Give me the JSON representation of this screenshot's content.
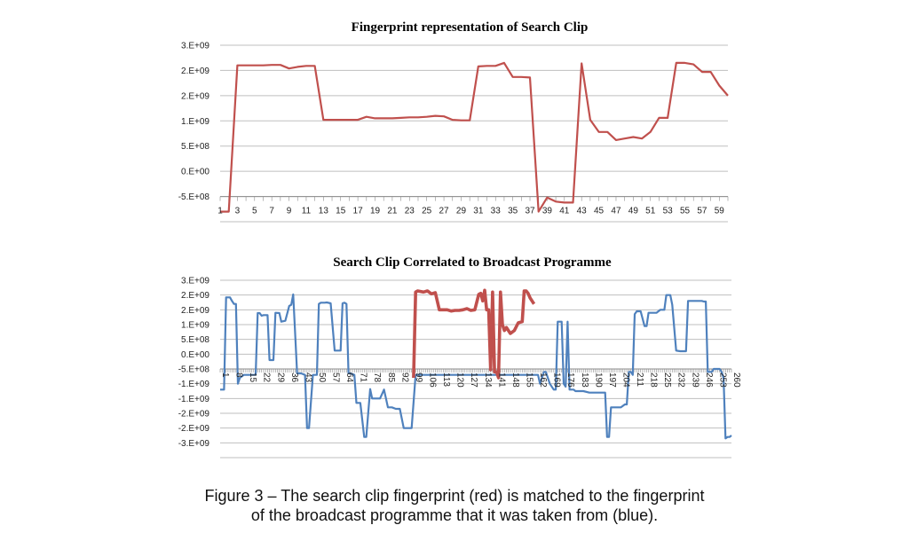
{
  "chart_data": [
    {
      "type": "line",
      "title": "Fingerprint representation of Search Clip",
      "xlabel": "",
      "ylabel": "",
      "ylim": [
        -500000000,
        3000000000
      ],
      "y_ticks": [
        "3.E+09",
        "2.E+09",
        "2.E+09",
        "1.E+09",
        "5.E+08",
        "0.E+00",
        "-5.E+08"
      ],
      "y_tick_values": [
        3000000000,
        2500000000,
        2000000000,
        1500000000,
        1000000000,
        500000000,
        0,
        -500000000
      ],
      "x_ticks": [
        "1",
        "3",
        "5",
        "7",
        "9",
        "11",
        "13",
        "15",
        "17",
        "19",
        "21",
        "23",
        "25",
        "27",
        "29",
        "31",
        "33",
        "35",
        "37",
        "39",
        "41",
        "43",
        "45",
        "47",
        "49",
        "51",
        "53",
        "55",
        "57",
        "59"
      ],
      "grid": true,
      "series": [
        {
          "color": "#c0504d",
          "x": [
            1,
            2,
            3,
            4,
            5,
            6,
            7,
            8,
            9,
            10,
            11,
            12,
            13,
            14,
            15,
            16,
            17,
            18,
            19,
            20,
            21,
            22,
            23,
            24,
            25,
            26,
            27,
            28,
            29,
            30,
            31,
            32,
            33,
            34,
            35,
            36,
            37,
            38,
            39,
            40,
            41,
            42,
            43,
            44,
            45,
            46,
            47,
            48,
            49,
            50,
            51,
            52,
            53,
            54,
            55,
            56,
            57,
            58,
            59,
            60
          ],
          "values": [
            -300000000,
            -300000000,
            2600000000,
            2600000000,
            2600000000,
            2600000000,
            2610000000,
            2610000000,
            2540000000,
            2570000000,
            2590000000,
            2590000000,
            1520000000,
            1520000000,
            1520000000,
            1520000000,
            1520000000,
            1580000000,
            1550000000,
            1550000000,
            1550000000,
            1560000000,
            1570000000,
            1570000000,
            1580000000,
            1600000000,
            1590000000,
            1520000000,
            1510000000,
            1510000000,
            2580000000,
            2590000000,
            2590000000,
            2650000000,
            2370000000,
            2370000000,
            2360000000,
            -300000000,
            -20000000,
            -100000000,
            -120000000,
            -120000000,
            2640000000,
            1520000000,
            1280000000,
            1280000000,
            1120000000,
            1150000000,
            1180000000,
            1150000000,
            1280000000,
            1560000000,
            1560000000,
            2650000000,
            2650000000,
            2620000000,
            2470000000,
            2470000000,
            2200000000,
            2000000000
          ]
        }
      ]
    },
    {
      "type": "line",
      "title": "Search Clip Correlated to Broadcast Programme",
      "xlabel": "",
      "ylabel": "",
      "ylim": [
        -3000000000,
        3000000000
      ],
      "y_ticks": [
        "3.E+09",
        "2.E+09",
        "2.E+09",
        "1.E+09",
        "5.E+08",
        "0.E+00",
        "-5.E+08",
        "-1.E+09",
        "-1.E+09",
        "-2.E+09",
        "-2.E+09",
        "-3.E+09"
      ],
      "y_tick_values": [
        3000000000,
        2500000000,
        2000000000,
        1500000000,
        1000000000,
        500000000,
        0,
        -500000000,
        -1000000000,
        -1500000000,
        -2000000000,
        -2500000000,
        -3000000000
      ],
      "x_ticks": [
        "1",
        "8",
        "15",
        "22",
        "29",
        "36",
        "43",
        "50",
        "57",
        "64",
        "71",
        "78",
        "85",
        "92",
        "99",
        "106",
        "113",
        "120",
        "127",
        "134",
        "141",
        "148",
        "155",
        "162",
        "169",
        "176",
        "183",
        "190",
        "197",
        "204",
        "211",
        "218",
        "225",
        "232",
        "239",
        "246",
        "253",
        "260"
      ],
      "grid": true,
      "series": [
        {
          "color": "#4f81bd",
          "x": [
            1,
            3,
            4,
            6,
            7,
            8,
            9,
            10,
            11,
            13,
            15,
            17,
            19,
            20,
            21,
            22,
            23,
            25,
            26,
            28,
            29,
            31,
            32,
            34,
            36,
            37,
            38,
            40,
            42,
            44,
            45,
            46,
            48,
            50,
            51,
            52,
            54,
            55,
            57,
            59,
            60,
            62,
            63,
            64,
            65,
            66,
            67,
            69,
            70,
            72,
            74,
            75,
            77,
            78,
            80,
            82,
            84,
            86,
            87,
            88,
            90,
            92,
            94,
            96,
            98,
            100,
            102,
            162,
            163,
            165,
            166,
            168,
            170,
            171,
            172,
            174,
            175,
            176,
            177,
            178,
            179,
            180,
            181,
            183,
            185,
            188,
            190,
            192,
            194,
            196,
            197,
            198,
            199,
            201,
            203,
            204,
            206,
            207,
            208,
            209,
            210,
            211,
            212,
            214,
            216,
            217,
            218,
            220,
            222,
            224,
            225,
            226,
            227,
            228,
            229,
            230,
            232,
            234,
            236,
            237,
            238,
            240,
            242,
            244,
            245,
            246,
            247,
            248,
            249,
            250,
            251,
            252,
            253,
            254,
            255,
            256,
            257,
            258,
            259,
            260
          ],
          "values": [
            -700000000,
            -700000000,
            2420000000,
            2420000000,
            2300000000,
            2200000000,
            2200000000,
            -500000000,
            -300000000,
            -200000000,
            -200000000,
            -200000000,
            -200000000,
            1890000000,
            1890000000,
            1800000000,
            1820000000,
            1820000000,
            300000000,
            300000000,
            1900000000,
            1890000000,
            1600000000,
            1630000000,
            2130000000,
            2170000000,
            2520000000,
            -150000000,
            -150000000,
            -200000000,
            -2000000000,
            -2000000000,
            -200000000,
            -200000000,
            2200000000,
            2240000000,
            2240000000,
            2250000000,
            2220000000,
            620000000,
            620000000,
            620000000,
            2220000000,
            2240000000,
            2200000000,
            -150000000,
            -150000000,
            -200000000,
            -1150000000,
            -1150000000,
            -2300000000,
            -2300000000,
            -680000000,
            -1000000000,
            -1000000000,
            -1000000000,
            -700000000,
            -1300000000,
            -1300000000,
            -1300000000,
            -1350000000,
            -1350000000,
            -2000000000,
            -2000000000,
            -2000000000,
            -200000000,
            -200000000,
            -200000000,
            -500000000,
            -100000000,
            -100000000,
            -500000000,
            -700000000,
            -700000000,
            1600000000,
            1600000000,
            -500000000,
            -600000000,
            1600000000,
            -700000000,
            -700000000,
            -700000000,
            -750000000,
            -750000000,
            -750000000,
            -800000000,
            -800000000,
            -800000000,
            -800000000,
            -800000000,
            -2300000000,
            -2300000000,
            -1300000000,
            -1300000000,
            -1300000000,
            -1300000000,
            -1200000000,
            -1200000000,
            -100000000,
            -100000000,
            -200000000,
            1850000000,
            1950000000,
            1950000000,
            1450000000,
            1450000000,
            1900000000,
            1900000000,
            1900000000,
            2000000000,
            2000000000,
            2000000000,
            2500000000,
            2500000000,
            2500000000,
            2170000000,
            620000000,
            600000000,
            600000000,
            600000000,
            2300000000,
            2300000000,
            2300000000,
            2300000000,
            2300000000,
            2280000000,
            2280000000,
            -100000000,
            -100000000,
            -100000000,
            0,
            0,
            0,
            0,
            -100000000,
            -300000000,
            -2350000000,
            -2300000000,
            -2300000000,
            -2250000000
          ]
        },
        {
          "color": "#c0504d",
          "x": [
            99,
            100,
            101,
            104,
            106,
            108,
            110,
            112,
            114,
            116,
            118,
            120,
            122,
            124,
            126,
            128,
            130,
            132,
            133,
            134,
            135,
            136,
            137,
            138,
            139,
            140,
            141,
            142,
            143,
            144,
            145,
            146,
            148,
            150,
            152,
            154,
            155,
            156,
            157,
            158,
            160
          ],
          "values": [
            -300000000,
            2600000000,
            2640000000,
            2600000000,
            2640000000,
            2540000000,
            2580000000,
            2000000000,
            2000000000,
            2000000000,
            1960000000,
            1980000000,
            1980000000,
            2000000000,
            2040000000,
            1980000000,
            2000000000,
            2520000000,
            2560000000,
            2300000000,
            2660000000,
            2000000000,
            2000000000,
            -30000000,
            2600000000,
            -100000000,
            -100000000,
            -300000000,
            2600000000,
            1500000000,
            1300000000,
            1400000000,
            1200000000,
            1300000000,
            1560000000,
            1600000000,
            2640000000,
            2640000000,
            2560000000,
            2400000000,
            2200000000
          ]
        }
      ]
    }
  ],
  "caption": {
    "line1": "Figure 3 – The search clip fingerprint (red) is matched to the fingerprint",
    "line2": "of the broadcast programme that it was taken from (blue)."
  }
}
